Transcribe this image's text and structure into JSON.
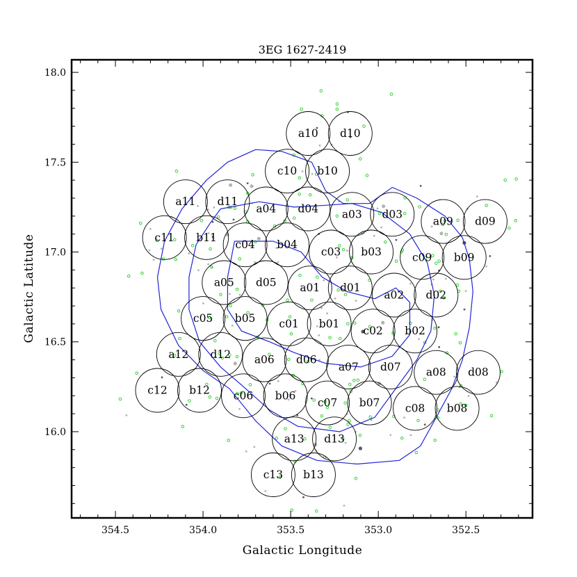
{
  "chart_data": {
    "type": "scatter",
    "title": "3EG 1627-2419",
    "xlabel": "Galactic Longitude",
    "ylabel": "Galactic Latitude",
    "xlim": [
      354.75,
      352.12
    ],
    "ylim": [
      15.52,
      18.07
    ],
    "x_reversed": true,
    "xticks": [
      354.5,
      354.0,
      353.5,
      353.0,
      352.5
    ],
    "xtick_labels": [
      "354.5",
      "354.0",
      "353.5",
      "353.0",
      "352.5"
    ],
    "yticks": [
      16.0,
      16.5,
      17.0,
      17.5,
      18.0
    ],
    "ytick_labels": [
      "16.0",
      "16.5",
      "17.0",
      "17.5",
      "18.0"
    ],
    "minor_step": 0.1,
    "field_radius_deg": 0.125,
    "fields": [
      {
        "label": "a10",
        "l": 353.4,
        "b": 17.66
      },
      {
        "label": "d10",
        "l": 353.16,
        "b": 17.66
      },
      {
        "label": "c10",
        "l": 353.52,
        "b": 17.45
      },
      {
        "label": "b10",
        "l": 353.29,
        "b": 17.45
      },
      {
        "label": "a11",
        "l": 354.1,
        "b": 17.28
      },
      {
        "label": "d11",
        "l": 353.86,
        "b": 17.28
      },
      {
        "label": "a04",
        "l": 353.64,
        "b": 17.24
      },
      {
        "label": "d04",
        "l": 353.4,
        "b": 17.24
      },
      {
        "label": "a03",
        "l": 353.15,
        "b": 17.21
      },
      {
        "label": "d03",
        "l": 352.92,
        "b": 17.21
      },
      {
        "label": "a09",
        "l": 352.63,
        "b": 17.17
      },
      {
        "label": "d09",
        "l": 352.39,
        "b": 17.17
      },
      {
        "label": "c11",
        "l": 354.22,
        "b": 17.08
      },
      {
        "label": "b11",
        "l": 353.98,
        "b": 17.08
      },
      {
        "label": "c04",
        "l": 353.76,
        "b": 17.04
      },
      {
        "label": "b04",
        "l": 353.52,
        "b": 17.04
      },
      {
        "label": "c03",
        "l": 353.27,
        "b": 17.0
      },
      {
        "label": "b03",
        "l": 353.04,
        "b": 17.0
      },
      {
        "label": "c09",
        "l": 352.75,
        "b": 16.97
      },
      {
        "label": "b09",
        "l": 352.51,
        "b": 16.97
      },
      {
        "label": "a05",
        "l": 353.88,
        "b": 16.83
      },
      {
        "label": "d05",
        "l": 353.64,
        "b": 16.83
      },
      {
        "label": "a01",
        "l": 353.39,
        "b": 16.8
      },
      {
        "label": "d01",
        "l": 353.16,
        "b": 16.8
      },
      {
        "label": "a02",
        "l": 352.91,
        "b": 16.76
      },
      {
        "label": "d02",
        "l": 352.67,
        "b": 16.76
      },
      {
        "label": "c05",
        "l": 354.0,
        "b": 16.63
      },
      {
        "label": "b05",
        "l": 353.76,
        "b": 16.63
      },
      {
        "label": "c01",
        "l": 353.51,
        "b": 16.6
      },
      {
        "label": "b01",
        "l": 353.28,
        "b": 16.6
      },
      {
        "label": "c02",
        "l": 353.03,
        "b": 16.56
      },
      {
        "label": "b02",
        "l": 352.79,
        "b": 16.56
      },
      {
        "label": "a12",
        "l": 354.14,
        "b": 16.43
      },
      {
        "label": "d12",
        "l": 353.9,
        "b": 16.43
      },
      {
        "label": "a06",
        "l": 353.65,
        "b": 16.4
      },
      {
        "label": "d06",
        "l": 353.41,
        "b": 16.4
      },
      {
        "label": "a07",
        "l": 353.17,
        "b": 16.36
      },
      {
        "label": "d07",
        "l": 352.93,
        "b": 16.36
      },
      {
        "label": "a08",
        "l": 352.67,
        "b": 16.33
      },
      {
        "label": "d08",
        "l": 352.43,
        "b": 16.33
      },
      {
        "label": "c12",
        "l": 354.26,
        "b": 16.23
      },
      {
        "label": "b12",
        "l": 354.02,
        "b": 16.23
      },
      {
        "label": "c06",
        "l": 353.77,
        "b": 16.2
      },
      {
        "label": "b06",
        "l": 353.53,
        "b": 16.2
      },
      {
        "label": "c07",
        "l": 353.29,
        "b": 16.16
      },
      {
        "label": "b07",
        "l": 353.05,
        "b": 16.16
      },
      {
        "label": "c08",
        "l": 352.79,
        "b": 16.13
      },
      {
        "label": "b08",
        "l": 352.55,
        "b": 16.13
      },
      {
        "label": "a13",
        "l": 353.48,
        "b": 15.96
      },
      {
        "label": "d13",
        "l": 353.25,
        "b": 15.96
      },
      {
        "label": "c13",
        "l": 353.6,
        "b": 15.76
      },
      {
        "label": "b13",
        "l": 353.37,
        "b": 15.76
      }
    ],
    "contours": [
      [
        [
          353.7,
          17.57
        ],
        [
          353.55,
          17.56
        ],
        [
          353.38,
          17.5
        ],
        [
          353.3,
          17.34
        ],
        [
          353.2,
          17.27
        ],
        [
          353.05,
          17.27
        ],
        [
          352.92,
          17.36
        ],
        [
          352.78,
          17.3
        ],
        [
          352.62,
          17.2
        ],
        [
          352.52,
          17.08
        ],
        [
          352.48,
          16.96
        ],
        [
          352.46,
          16.78
        ],
        [
          352.48,
          16.58
        ],
        [
          352.52,
          16.4
        ],
        [
          352.58,
          16.24
        ],
        [
          352.68,
          16.06
        ],
        [
          352.76,
          15.92
        ],
        [
          352.88,
          15.84
        ],
        [
          353.12,
          15.82
        ],
        [
          353.35,
          15.84
        ],
        [
          353.55,
          15.92
        ],
        [
          353.7,
          16.06
        ],
        [
          353.85,
          16.24
        ],
        [
          354.0,
          16.34
        ],
        [
          354.14,
          16.48
        ],
        [
          354.24,
          16.68
        ],
        [
          354.26,
          16.86
        ],
        [
          354.22,
          17.06
        ],
        [
          354.12,
          17.24
        ],
        [
          353.98,
          17.4
        ],
        [
          353.86,
          17.5
        ],
        [
          353.7,
          17.57
        ]
      ],
      [
        [
          353.9,
          17.24
        ],
        [
          353.68,
          17.28
        ],
        [
          353.48,
          17.25
        ],
        [
          353.3,
          17.26
        ],
        [
          353.15,
          17.27
        ],
        [
          352.98,
          17.22
        ],
        [
          352.82,
          17.1
        ],
        [
          352.72,
          16.94
        ],
        [
          352.68,
          16.76
        ],
        [
          352.7,
          16.56
        ],
        [
          352.78,
          16.4
        ],
        [
          352.9,
          16.24
        ],
        [
          353.02,
          16.08
        ],
        [
          353.22,
          16.0
        ],
        [
          353.46,
          16.03
        ],
        [
          353.62,
          16.12
        ],
        [
          353.78,
          16.26
        ],
        [
          353.9,
          16.36
        ],
        [
          354.02,
          16.5
        ],
        [
          354.08,
          16.68
        ],
        [
          354.08,
          16.86
        ],
        [
          354.04,
          17.04
        ],
        [
          353.96,
          17.16
        ],
        [
          353.9,
          17.24
        ]
      ],
      [
        [
          353.82,
          17.06
        ],
        [
          353.6,
          17.06
        ],
        [
          353.44,
          17.0
        ],
        [
          353.32,
          16.86
        ],
        [
          353.18,
          16.78
        ],
        [
          353.02,
          16.74
        ],
        [
          352.9,
          16.8
        ],
        [
          352.82,
          16.72
        ],
        [
          352.82,
          16.54
        ],
        [
          352.92,
          16.42
        ],
        [
          353.1,
          16.36
        ],
        [
          353.3,
          16.38
        ],
        [
          353.48,
          16.44
        ],
        [
          353.62,
          16.5
        ],
        [
          353.78,
          16.56
        ],
        [
          353.86,
          16.68
        ],
        [
          353.86,
          16.86
        ],
        [
          353.82,
          17.06
        ]
      ]
    ]
  }
}
